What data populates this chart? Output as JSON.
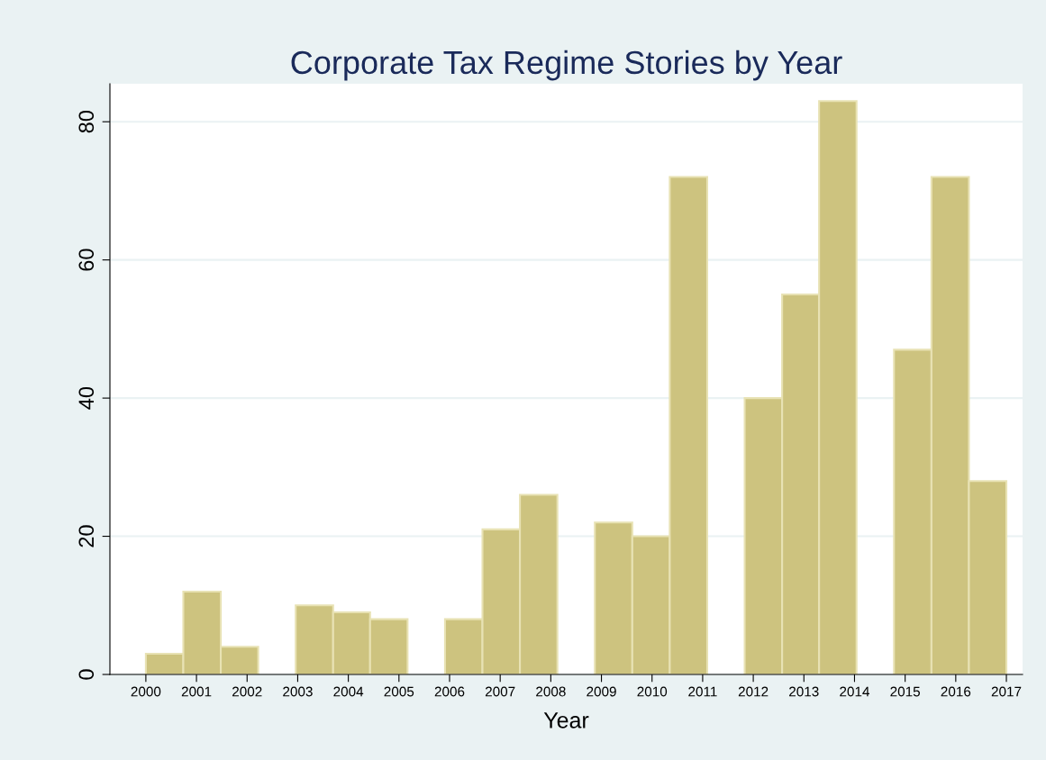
{
  "chart_data": {
    "type": "histogram",
    "title": "Corporate Tax Regime Stories by Year",
    "xlabel": "Year",
    "bins": [
      2000,
      2000.74,
      2001.48,
      2002.22,
      2002.96,
      2003.7,
      2004.43,
      2005.17,
      2005.91,
      2006.65,
      2007.39,
      2008.13,
      2008.87,
      2009.61,
      2010.35,
      2011.09,
      2011.83,
      2012.57,
      2013.3,
      2014.04,
      2014.78,
      2015.52,
      2016.26,
      2017
    ],
    "values": [
      3,
      12,
      4,
      0,
      10,
      9,
      8,
      0,
      8,
      21,
      26,
      0,
      22,
      20,
      72,
      0,
      40,
      55,
      83,
      0,
      47,
      72,
      28
    ],
    "color": "#cdc37f",
    "xlim": [
      1999.29,
      2017.32
    ],
    "xticks": [
      2000,
      2001,
      2002,
      2003,
      2004,
      2005,
      2006,
      2007,
      2008,
      2009,
      2010,
      2011,
      2012,
      2013,
      2014,
      2015,
      2016,
      2017
    ],
    "ylim": [
      0,
      85.5
    ],
    "yticks": [
      0,
      20,
      40,
      60,
      80
    ],
    "grid": "y"
  }
}
